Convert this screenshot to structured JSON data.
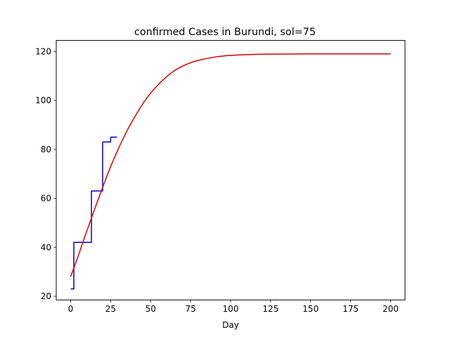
{
  "chart_data": {
    "type": "line",
    "title": "confirmed Cases in Burundi, sol=75",
    "xlabel": "Day",
    "ylabel": "",
    "xlim": [
      -9,
      209
    ],
    "ylim": [
      18.5,
      124.5
    ],
    "xticks": [
      0,
      25,
      50,
      75,
      100,
      125,
      150,
      175,
      200
    ],
    "yticks": [
      20,
      40,
      60,
      80,
      100,
      120
    ],
    "grid": false,
    "legend": "none",
    "series": [
      {
        "color": "#0000cc",
        "style": "step",
        "x": [
          0,
          2,
          2,
          13,
          13,
          20,
          20,
          25,
          25,
          29
        ],
        "y": [
          23,
          23,
          42,
          42,
          63,
          63,
          83,
          83,
          85,
          85
        ]
      },
      {
        "color": "#dd0000",
        "style": "curve",
        "x": [
          0,
          5,
          10,
          15,
          20,
          25,
          30,
          35,
          40,
          45,
          50,
          55,
          60,
          65,
          70,
          75,
          80,
          90,
          100,
          110,
          125,
          150,
          175,
          200
        ],
        "y": [
          28,
          37,
          46.5,
          55.6,
          64.5,
          73,
          80.5,
          87.3,
          93.2,
          98.5,
          103,
          106.6,
          109.7,
          112.2,
          114,
          115.4,
          116.4,
          117.7,
          118.4,
          118.7,
          118.9,
          119,
          119,
          119
        ]
      }
    ]
  }
}
